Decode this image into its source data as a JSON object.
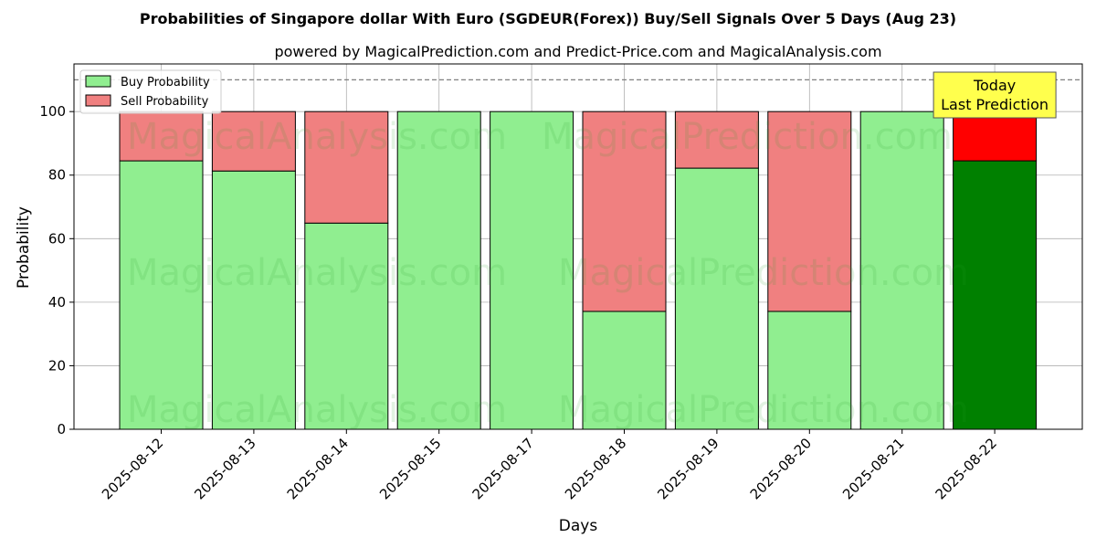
{
  "chart_data": {
    "type": "bar",
    "stacked": true,
    "title": "Probabilities of Singapore dollar With Euro (SGDEUR(Forex)) Buy/Sell Signals Over 5 Days (Aug 23)",
    "subtitle": "powered by MagicalPrediction.com and Predict-Price.com and MagicalAnalysis.com",
    "xlabel": "Days",
    "ylabel": "Probability",
    "ylim": [
      0,
      115
    ],
    "yticks": [
      0,
      20,
      40,
      60,
      80,
      100
    ],
    "grid": true,
    "legend_position": "top-left",
    "reference_line": 110,
    "categories": [
      "2025-08-12",
      "2025-08-13",
      "2025-08-14",
      "2025-08-15",
      "2025-08-17",
      "2025-08-18",
      "2025-08-19",
      "2025-08-20",
      "2025-08-21",
      "2025-08-22"
    ],
    "series": [
      {
        "name": "Buy Probability",
        "color": "#90ee90",
        "highlight_color": "#008000",
        "values": [
          84.5,
          81.3,
          64.9,
          100,
          100,
          37.1,
          82.2,
          37.1,
          100,
          84.5
        ]
      },
      {
        "name": "Sell Probability",
        "color": "#f08080",
        "highlight_color": "#ff0000",
        "values": [
          15.5,
          18.7,
          35.1,
          0,
          0,
          62.9,
          17.8,
          62.9,
          0,
          15.5
        ]
      }
    ],
    "highlight_index": 9,
    "annotation": {
      "lines": [
        "Today",
        "Last Prediction"
      ],
      "background": "#ffff4d"
    },
    "watermarks": [
      "MagicalAnalysis.com",
      "MagicalPrediction.com"
    ]
  }
}
